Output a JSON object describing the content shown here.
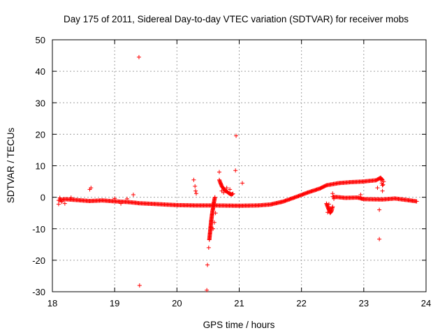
{
  "chart_data": {
    "type": "scatter",
    "title": "Day 175 of 2011, Sidereal Day-to-day VTEC variation (SDTVAR) for receiver mobs",
    "xlabel": "GPS time / hours",
    "ylabel": "SDTVAR / TECUs",
    "xlim": [
      18,
      24
    ],
    "ylim": [
      -30,
      50
    ],
    "x_ticks": [
      "18",
      "19",
      "20",
      "21",
      "22",
      "23",
      "24"
    ],
    "y_ticks": [
      "-30",
      "-20",
      "-10",
      "0",
      "10",
      "20",
      "30",
      "40",
      "50"
    ],
    "grid": true,
    "marker": "+",
    "series": [
      {
        "name": "SDTVAR",
        "color": "#ff0000",
        "main_trend": [
          [
            18.1,
            -1.0
          ],
          [
            18.2,
            -0.6
          ],
          [
            18.4,
            -0.9
          ],
          [
            18.6,
            -1.2
          ],
          [
            18.8,
            -1.0
          ],
          [
            19.0,
            -1.3
          ],
          [
            19.2,
            -1.5
          ],
          [
            19.4,
            -1.9
          ],
          [
            19.6,
            -2.1
          ],
          [
            19.8,
            -2.3
          ],
          [
            20.0,
            -2.5
          ],
          [
            20.3,
            -2.6
          ],
          [
            20.6,
            -2.6
          ],
          [
            21.0,
            -2.7
          ],
          [
            21.3,
            -2.6
          ],
          [
            21.5,
            -2.3
          ],
          [
            21.7,
            -1.4
          ],
          [
            21.9,
            0.0
          ],
          [
            22.1,
            1.5
          ],
          [
            22.3,
            2.8
          ],
          [
            22.4,
            3.8
          ],
          [
            22.6,
            4.5
          ],
          [
            22.8,
            4.8
          ],
          [
            23.0,
            5.0
          ],
          [
            23.2,
            5.4
          ],
          [
            23.27,
            6.2
          ],
          [
            23.3,
            5.5
          ]
        ],
        "late_segment": [
          [
            22.5,
            0.2
          ],
          [
            22.7,
            -0.2
          ],
          [
            22.9,
            -0.1
          ],
          [
            23.0,
            -0.6
          ],
          [
            23.3,
            -0.7
          ],
          [
            23.5,
            -0.4
          ],
          [
            23.7,
            -0.9
          ],
          [
            23.85,
            -1.3
          ]
        ],
        "early_cluster": [
          [
            18.1,
            -2.2
          ],
          [
            18.12,
            -0.2
          ],
          [
            18.15,
            -1.5
          ],
          [
            18.2,
            -2.0
          ],
          [
            18.3,
            -0.1
          ],
          [
            19.0,
            -0.4
          ],
          [
            19.1,
            -2.0
          ],
          [
            19.2,
            -0.5
          ]
        ],
        "spike_2050": [
          [
            20.52,
            -13.5
          ],
          [
            20.53,
            -11.5
          ],
          [
            20.54,
            -9.5
          ],
          [
            20.55,
            -7.5
          ],
          [
            20.56,
            -6.0
          ],
          [
            20.57,
            -4.5
          ],
          [
            20.58,
            -3.5
          ],
          [
            20.59,
            -2.0
          ],
          [
            20.6,
            -1.0
          ],
          [
            20.61,
            0.0
          ],
          [
            20.62,
            -5.0
          ],
          [
            20.6,
            -8.0
          ],
          [
            20.58,
            -10.0
          ]
        ],
        "burst_2070": [
          [
            20.68,
            5.5
          ],
          [
            20.7,
            4.5
          ],
          [
            20.72,
            3.5
          ],
          [
            20.74,
            3.0
          ],
          [
            20.76,
            2.5
          ],
          [
            20.78,
            2.0
          ],
          [
            20.8,
            1.8
          ],
          [
            20.82,
            1.5
          ],
          [
            20.84,
            1.2
          ],
          [
            20.86,
            1.0
          ],
          [
            20.88,
            0.9
          ],
          [
            20.9,
            1.1
          ],
          [
            20.72,
            2.0
          ],
          [
            20.75,
            1.5
          ],
          [
            20.8,
            3.0
          ],
          [
            20.85,
            2.5
          ]
        ],
        "cluster_2240": [
          [
            22.4,
            -2.0
          ],
          [
            22.42,
            -3.0
          ],
          [
            22.44,
            -4.0
          ],
          [
            22.46,
            -5.0
          ],
          [
            22.48,
            -4.5
          ],
          [
            22.5,
            -3.0
          ],
          [
            22.42,
            -4.8
          ],
          [
            22.46,
            -3.5
          ],
          [
            22.44,
            -2.2
          ]
        ],
        "cluster_2330": [
          [
            23.27,
            5.5
          ],
          [
            23.29,
            4.5
          ],
          [
            23.31,
            4.0
          ],
          [
            23.32,
            5.0
          ],
          [
            23.3,
            3.8
          ]
        ],
        "outliers": [
          [
            19.39,
            44.5
          ],
          [
            19.4,
            -28.0
          ],
          [
            20.27,
            5.5
          ],
          [
            20.29,
            3.5
          ],
          [
            20.3,
            2.0
          ],
          [
            20.31,
            1.2
          ],
          [
            20.48,
            -29.5
          ],
          [
            20.49,
            -21.5
          ],
          [
            20.51,
            -16.0
          ],
          [
            20.68,
            8.0
          ],
          [
            20.95,
            19.5
          ],
          [
            20.94,
            8.5
          ],
          [
            21.05,
            4.5
          ],
          [
            18.6,
            2.5
          ],
          [
            18.62,
            3.0
          ],
          [
            19.3,
            0.8
          ],
          [
            23.25,
            -13.3
          ],
          [
            23.25,
            -4.0
          ],
          [
            23.22,
            3.0
          ],
          [
            23.3,
            2.0
          ],
          [
            22.5,
            1.2
          ],
          [
            22.52,
            -0.5
          ],
          [
            22.95,
            0.8
          ],
          [
            23.0,
            -0.5
          ]
        ]
      }
    ]
  }
}
